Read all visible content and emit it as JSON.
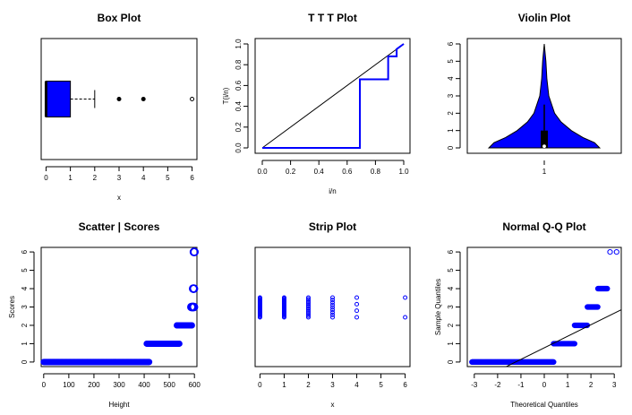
{
  "chart_data": [
    {
      "id": "box",
      "type": "box",
      "title": "Box Plot",
      "xlabel": "x",
      "ylabel": "",
      "xlim": [
        -0.2,
        6.2
      ],
      "xticks": [
        "0",
        "1",
        "2",
        "3",
        "4",
        "5",
        "6"
      ],
      "stats": {
        "min": 0,
        "q1": 0,
        "median": 0,
        "q3": 1,
        "whisker_high": 2
      },
      "outliers": [
        3,
        4,
        6
      ],
      "fill": "#0000ff"
    },
    {
      "id": "ttt",
      "type": "line",
      "title": "T T T Plot",
      "xlabel": "i/n",
      "ylabel": "T(i/n)",
      "xlim": [
        0,
        1
      ],
      "ylim": [
        0,
        1
      ],
      "xticks": [
        "0.0",
        "0.2",
        "0.4",
        "0.6",
        "0.8",
        "1.0"
      ],
      "yticks": [
        "0.0",
        "0.2",
        "0.4",
        "0.6",
        "0.8",
        "1.0"
      ],
      "diagonal": [
        [
          0,
          0
        ],
        [
          1,
          1
        ]
      ],
      "curve": [
        [
          0,
          0
        ],
        [
          0.69,
          0
        ],
        [
          0.69,
          0.66
        ],
        [
          0.89,
          0.66
        ],
        [
          0.89,
          0.88
        ],
        [
          0.95,
          0.88
        ],
        [
          0.95,
          0.95
        ],
        [
          1,
          1
        ]
      ],
      "color": "#0000ff"
    },
    {
      "id": "violin",
      "type": "violin",
      "title": "Violin Plot",
      "xlabel": "",
      "ylabel": "",
      "ylim": [
        0,
        6
      ],
      "xticks": [
        "1"
      ],
      "yticks": [
        "0",
        "1",
        "2",
        "3",
        "4",
        "5",
        "6"
      ],
      "density_profile": [
        [
          0,
          0.86
        ],
        [
          0.3,
          0.78
        ],
        [
          0.6,
          0.6
        ],
        [
          1,
          0.42
        ],
        [
          1.5,
          0.26
        ],
        [
          2,
          0.16
        ],
        [
          3,
          0.07
        ],
        [
          4,
          0.04
        ],
        [
          5,
          0.025
        ],
        [
          6,
          0
        ]
      ],
      "box": {
        "q1": 0,
        "median": 0.3,
        "q3": 1,
        "whisker_high": 2.5
      },
      "fill": "#0000ff"
    },
    {
      "id": "scatter",
      "type": "scatter",
      "title": "Scatter | Scores",
      "xlabel": "Height",
      "ylabel": "Scores",
      "xlim": [
        -10,
        610
      ],
      "ylim": [
        -0.2,
        6.2
      ],
      "xticks": [
        "0",
        "100",
        "200",
        "300",
        "400",
        "500",
        "600"
      ],
      "yticks": [
        "0",
        "1",
        "2",
        "3",
        "4",
        "5",
        "6"
      ],
      "groups": [
        {
          "y": 0,
          "x_from": 0,
          "x_to": 420,
          "step": 2
        },
        {
          "y": 1,
          "x_from": 410,
          "x_to": 540,
          "step": 2
        },
        {
          "y": 2,
          "x_from": 530,
          "x_to": 590,
          "step": 2
        },
        {
          "y": 3,
          "x_from": 588,
          "x_to": 598,
          "step": 2
        },
        {
          "y": 4,
          "x_from": 595,
          "x_to": 598,
          "step": 3
        },
        {
          "y": 6,
          "x_from": 598,
          "x_to": 600,
          "step": 2
        }
      ],
      "color": "#0000ff"
    },
    {
      "id": "strip",
      "type": "strip",
      "title": "Strip Plot",
      "xlabel": "x",
      "ylabel": "",
      "xlim": [
        -0.2,
        6.2
      ],
      "xticks": [
        "0",
        "1",
        "2",
        "3",
        "4",
        "5",
        "6"
      ],
      "columns": [
        {
          "x": 0,
          "count": 22
        },
        {
          "x": 1,
          "count": 22
        },
        {
          "x": 2,
          "count": 14
        },
        {
          "x": 3,
          "count": 9
        },
        {
          "x": 4,
          "count": 4
        },
        {
          "x": 6,
          "count": 2
        }
      ],
      "color": "#0000ff"
    },
    {
      "id": "qq",
      "type": "scatter",
      "title": "Normal Q-Q Plot",
      "xlabel": "Theoretical Quantiles",
      "ylabel": "Sample Quantiles",
      "xlim": [
        -3.3,
        3.3
      ],
      "ylim": [
        -0.2,
        6.2
      ],
      "xticks": [
        "-3",
        "-2",
        "-1",
        "0",
        "1",
        "2",
        "3"
      ],
      "yticks": [
        "0",
        "1",
        "2",
        "3",
        "4",
        "5",
        "6"
      ],
      "groups": [
        {
          "y": 0,
          "x_from": -3.1,
          "x_to": 0.4,
          "step": 0.02
        },
        {
          "y": 1,
          "x_from": 0.4,
          "x_to": 1.3,
          "step": 0.02
        },
        {
          "y": 2,
          "x_from": 1.3,
          "x_to": 1.85,
          "step": 0.02
        },
        {
          "y": 3,
          "x_from": 1.85,
          "x_to": 2.3,
          "step": 0.02
        },
        {
          "y": 4,
          "x_from": 2.3,
          "x_to": 2.7,
          "step": 0.02
        },
        {
          "y": 6,
          "x_from": 2.82,
          "x_to": 3.1,
          "step": 0.28
        }
      ],
      "ref_line": [
        [
          -3.3,
          -1.3
        ],
        [
          3.3,
          2.85
        ]
      ],
      "color": "#0000ff"
    }
  ]
}
